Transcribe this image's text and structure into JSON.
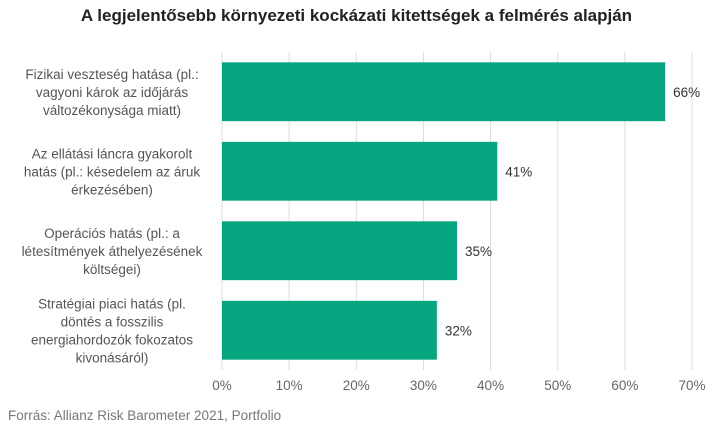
{
  "chart_data": {
    "type": "bar",
    "orientation": "horizontal",
    "title": "A legjelentősebb környezeti kockázati kitettségek a felmérés alapján",
    "categories": [
      [
        "Fizikai veszteség hatása (pl.:",
        "vagyoni károk az időjárás",
        "változékonysága miatt)"
      ],
      [
        "Az ellátási láncra gyakorolt",
        "hatás (pl.: késedelem az áruk",
        "érkezésében)"
      ],
      [
        "Operációs hatás (pl.: a",
        "létesítmények áthelyezésének",
        "költségei)"
      ],
      [
        "Stratégiai piaci hatás (pl.",
        "döntés a fosszilis",
        "energiahordozók fokozatos",
        "kivonásáról)"
      ]
    ],
    "values": [
      66,
      41,
      35,
      32
    ],
    "value_labels": [
      "66%",
      "41%",
      "35%",
      "32%"
    ],
    "xlim": [
      0,
      70
    ],
    "xticks": [
      "0%",
      "10%",
      "20%",
      "30%",
      "40%",
      "50%",
      "60%",
      "70%"
    ],
    "grid": "vertical",
    "bar_color": "#05a57f",
    "source": "Forrás: Allianz Risk Barometer 2021, Portfolio"
  }
}
